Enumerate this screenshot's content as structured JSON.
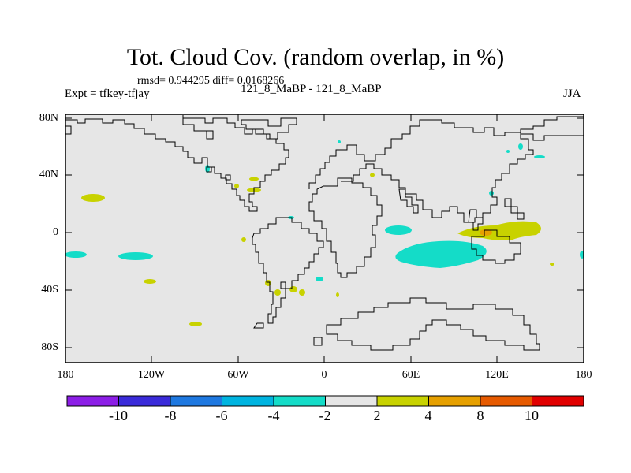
{
  "header": {
    "title": "Tot. Cloud Cov. (random overlap, in %)",
    "stats": "rmsd= 0.944295  diff= 0.0168266",
    "left_string": "Expt = tfkey-tfjay",
    "center_string": "121_8_MaBP - 121_8_MaBP",
    "right_string": "JJA"
  },
  "map": {
    "lat_labels": [
      "80N",
      "40N",
      "0",
      "40S",
      "80S"
    ],
    "lon_labels": [
      "180",
      "120W",
      "60W",
      "0",
      "60E",
      "120E",
      "180"
    ],
    "background_color": "#e6e6e6"
  },
  "colorbar": {
    "labels": [
      "-10",
      "-8",
      "-6",
      "-4",
      "-2",
      "2",
      "4",
      "8",
      "10"
    ],
    "colors": [
      "#8c1ee6",
      "#3a2bd9",
      "#1e78e0",
      "#00b4e0",
      "#14dcc8",
      "#e6e6e6",
      "#c8d200",
      "#e6a000",
      "#e65a00",
      "#e10000"
    ]
  }
}
